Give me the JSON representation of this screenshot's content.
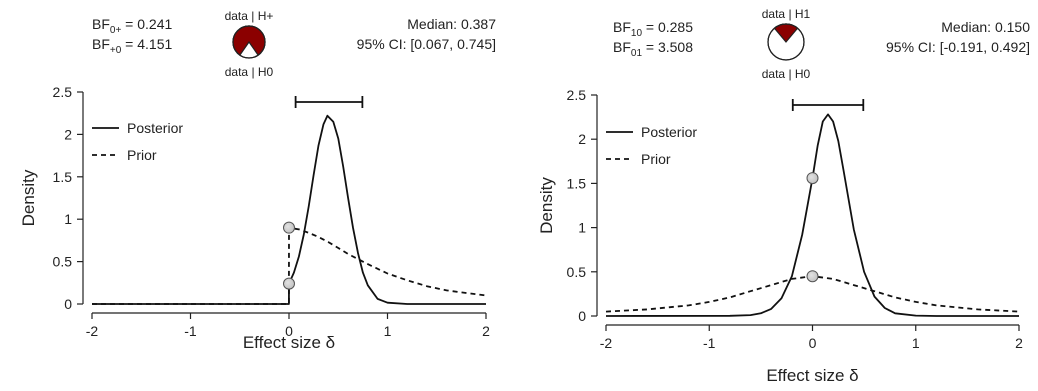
{
  "chart_data": [
    {
      "type": "line",
      "xlabel": "Effect size δ",
      "ylabel": "Density",
      "xlim": [
        -2,
        2
      ],
      "ylim": [
        0,
        2.5
      ],
      "x_ticks": [
        "-2",
        "-1",
        "0",
        "1",
        "2"
      ],
      "y_ticks": [
        "0",
        "0.5",
        "1",
        "1.5",
        "2",
        "2.5"
      ],
      "x_tick_values": [
        -2,
        -1,
        0,
        1,
        2
      ],
      "y_tick_values": [
        0,
        0.5,
        1,
        1.5,
        2,
        2.5
      ],
      "bf_lines": [
        {
          "main": "BF",
          "sub": "0+",
          "rest": " = 0.241"
        },
        {
          "main": "BF",
          "sub": "+0",
          "rest": " = 4.151"
        }
      ],
      "median_text": "Median: 0.387",
      "ci_text": "95% CI: [0.067, 0.745]",
      "ci": [
        0.067,
        0.745
      ],
      "pie": {
        "top_label": "data | H+",
        "bottom_label": "data | H0",
        "h1_fraction": 0.806,
        "h1_color": "#8b0000",
        "h0_color": "#ffffff"
      },
      "legend": {
        "position": "top-left",
        "entries": [
          {
            "label": "Posterior",
            "style": "solid"
          },
          {
            "label": "Prior",
            "style": "dashed"
          }
        ]
      },
      "series": [
        {
          "name": "Posterior",
          "style": "solid",
          "x": [
            -2,
            -0.001,
            0,
            0.05,
            0.1,
            0.15,
            0.2,
            0.25,
            0.3,
            0.35,
            0.39,
            0.45,
            0.5,
            0.55,
            0.6,
            0.65,
            0.7,
            0.75,
            0.8,
            0.9,
            1.0,
            1.2,
            1.5,
            2
          ],
          "y": [
            0,
            0,
            0.24,
            0.37,
            0.56,
            0.82,
            1.15,
            1.52,
            1.87,
            2.12,
            2.22,
            2.15,
            1.95,
            1.62,
            1.25,
            0.9,
            0.6,
            0.37,
            0.22,
            0.06,
            0.015,
            0,
            0,
            0
          ]
        },
        {
          "name": "Prior",
          "style": "dashed",
          "x": [
            -2,
            -0.001,
            0,
            0.1,
            0.2,
            0.3,
            0.4,
            0.5,
            0.6,
            0.8,
            1.0,
            1.2,
            1.4,
            1.6,
            1.8,
            2
          ],
          "y": [
            0,
            0,
            0.9,
            0.88,
            0.84,
            0.79,
            0.73,
            0.66,
            0.59,
            0.47,
            0.36,
            0.28,
            0.21,
            0.16,
            0.13,
            0.1
          ]
        }
      ],
      "points": [
        {
          "x": 0,
          "y": 0.9
        },
        {
          "x": 0,
          "y": 0.24
        }
      ]
    },
    {
      "type": "line",
      "xlabel": "Effect size δ",
      "ylabel": "Density",
      "xlim": [
        -2,
        2
      ],
      "ylim": [
        0,
        2.5
      ],
      "x_ticks": [
        "-2",
        "-1",
        "0",
        "1",
        "2"
      ],
      "y_ticks": [
        "0",
        "0.5",
        "1",
        "1.5",
        "2",
        "2.5"
      ],
      "x_tick_values": [
        -2,
        -1,
        0,
        1,
        2
      ],
      "y_tick_values": [
        0,
        0.5,
        1,
        1.5,
        2,
        2.5
      ],
      "bf_lines": [
        {
          "main": "BF",
          "sub": "10",
          "rest": " = 0.285"
        },
        {
          "main": "BF",
          "sub": "01",
          "rest": " = 3.508"
        }
      ],
      "median_text": "Median: 0.150",
      "ci_text": "95% CI: [-0.191, 0.492]",
      "ci": [
        -0.191,
        0.492
      ],
      "pie": {
        "top_label": "data | H1",
        "bottom_label": "data | H0",
        "h1_fraction": 0.222,
        "h1_color": "#8b0000",
        "h0_color": "#ffffff"
      },
      "legend": {
        "position": "top-left",
        "entries": [
          {
            "label": "Posterior",
            "style": "solid"
          },
          {
            "label": "Prior",
            "style": "dashed"
          }
        ]
      },
      "series": [
        {
          "name": "Posterior",
          "style": "solid",
          "x": [
            -2,
            -0.8,
            -0.6,
            -0.5,
            -0.4,
            -0.3,
            -0.2,
            -0.1,
            0,
            0.05,
            0.1,
            0.15,
            0.2,
            0.25,
            0.3,
            0.4,
            0.5,
            0.6,
            0.7,
            0.8,
            1.0,
            1.2,
            2
          ],
          "y": [
            0,
            0.002,
            0.01,
            0.03,
            0.08,
            0.2,
            0.45,
            0.92,
            1.56,
            1.93,
            2.2,
            2.28,
            2.2,
            1.98,
            1.65,
            0.98,
            0.5,
            0.22,
            0.09,
            0.03,
            0.004,
            0,
            0
          ]
        },
        {
          "name": "Prior",
          "style": "dashed",
          "x": [
            -2,
            -1.6,
            -1.2,
            -1.0,
            -0.8,
            -0.6,
            -0.4,
            -0.2,
            0,
            0.2,
            0.4,
            0.6,
            0.8,
            1.0,
            1.2,
            1.6,
            2
          ],
          "y": [
            0.05,
            0.075,
            0.12,
            0.16,
            0.21,
            0.28,
            0.35,
            0.42,
            0.45,
            0.42,
            0.35,
            0.28,
            0.21,
            0.16,
            0.12,
            0.075,
            0.05
          ]
        }
      ],
      "points": [
        {
          "x": 0,
          "y": 1.56
        },
        {
          "x": 0,
          "y": 0.45
        }
      ]
    }
  ]
}
